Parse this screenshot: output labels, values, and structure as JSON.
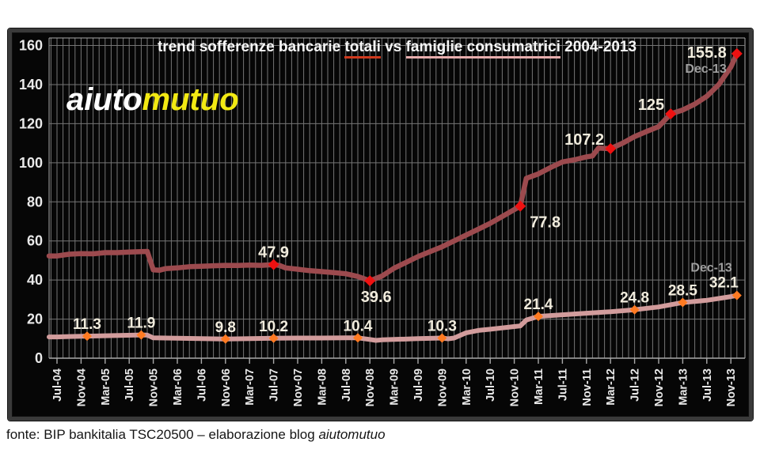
{
  "logo": {
    "part1": "aiuto",
    "part2": "mutuo",
    "color1": "#ffffff",
    "color2": "#f2e913"
  },
  "title": {
    "prefix": "trend sofferenze bancarie ",
    "totali": "totali",
    "mid": " vs ",
    "famiglie": "famiglie consumatrici",
    "suffix": " 2004-2013",
    "underline_totali": "#cf3a1e",
    "underline_famiglie": "#e8aeae"
  },
  "footer": {
    "prefix": "fonte: BIP bankitalia TSC20500 – elaborazione blog ",
    "italic": "aiutomutuo"
  },
  "chart_data": {
    "type": "line",
    "title": "trend sofferenze bancarie totali vs famiglie consumatrici 2004-2013",
    "xlabel": "",
    "ylabel": "",
    "ylim": [
      0,
      160
    ],
    "y_ticks": [
      0,
      20,
      40,
      60,
      80,
      100,
      120,
      140,
      160
    ],
    "grid": "monthly vertical gridlines + horizontal every 20",
    "legend": "no legend box; title words underlined in series colors",
    "x_unit": "months, index 0 = Jul-04, index 113 = Dec-13",
    "x_tick_every_months": 4,
    "x_tick_labels": [
      "Jul-04",
      "Nov-04",
      "Mar-05",
      "Jul-05",
      "Nov-05",
      "Mar-06",
      "Jul-06",
      "Nov-06",
      "Mar-07",
      "Jul-07",
      "Nov-07",
      "Mar-08",
      "Jul-08",
      "Nov-08",
      "Mar-09",
      "Jul-09",
      "Nov-09",
      "Mar-10",
      "Jul-10",
      "Nov-10",
      "Mar-11",
      "Jul-11",
      "Nov-11",
      "Mar-12",
      "Jul-12",
      "Nov-12",
      "Mar-13",
      "Jul-13",
      "Nov-13"
    ],
    "colors": {
      "plot_bg": "#060606",
      "grid": "#757575",
      "axis": "#a8a8a8",
      "tick_text": "#e9e9e9",
      "label_text": "#f1ecdd",
      "note_text": "#a0a0a0"
    },
    "series": [
      {
        "name": "sofferenze bancarie totali",
        "color": "#9c4a4e",
        "marker_color": "#ee1111",
        "line_width": 6.5,
        "points": [
          [
            0,
            52.3
          ],
          [
            2,
            53.2
          ],
          [
            4,
            53.5
          ],
          [
            6,
            53.4
          ],
          [
            8,
            54
          ],
          [
            10,
            54
          ],
          [
            12,
            54.3
          ],
          [
            15,
            54.6
          ],
          [
            16,
            45.2
          ],
          [
            17,
            45
          ],
          [
            18,
            45.8
          ],
          [
            20,
            46.2
          ],
          [
            22,
            46.8
          ],
          [
            24,
            47
          ],
          [
            26,
            47.3
          ],
          [
            28,
            47.5
          ],
          [
            30,
            47.4
          ],
          [
            32,
            47.6
          ],
          [
            34,
            47.5
          ],
          [
            36,
            47.9
          ],
          [
            37,
            47.4
          ],
          [
            38,
            46.2
          ],
          [
            40,
            45.5
          ],
          [
            42,
            44.8
          ],
          [
            44,
            44.3
          ],
          [
            46,
            43.8
          ],
          [
            48,
            43.2
          ],
          [
            50,
            41.8
          ],
          [
            52,
            39.6
          ],
          [
            54,
            42
          ],
          [
            56,
            46
          ],
          [
            58,
            49
          ],
          [
            60,
            52
          ],
          [
            62,
            54.5
          ],
          [
            64,
            57
          ],
          [
            66,
            60
          ],
          [
            68,
            63
          ],
          [
            70,
            66
          ],
          [
            72,
            69
          ],
          [
            74,
            72.5
          ],
          [
            76,
            76
          ],
          [
            77,
            77.8
          ],
          [
            78,
            92
          ],
          [
            80,
            94.3
          ],
          [
            82,
            97.5
          ],
          [
            84,
            100.4
          ],
          [
            86,
            101.5
          ],
          [
            88,
            103
          ],
          [
            89,
            103.5
          ],
          [
            90,
            107.5
          ],
          [
            92,
            107.2
          ],
          [
            94,
            110
          ],
          [
            96,
            113.4
          ],
          [
            98,
            116
          ],
          [
            100,
            118.5
          ],
          [
            102,
            125
          ],
          [
            104,
            127
          ],
          [
            106,
            130
          ],
          [
            108,
            134
          ],
          [
            110,
            140
          ],
          [
            112,
            149
          ],
          [
            113,
            155.8
          ]
        ]
      },
      {
        "name": "sofferenze famiglie consumatrici",
        "color": "#d29c9c",
        "marker_color": "#ff7a22",
        "line_width": 6,
        "points": [
          [
            0,
            10.9
          ],
          [
            2,
            11.1
          ],
          [
            5,
            11.3
          ],
          [
            8,
            11.5
          ],
          [
            11,
            11.7
          ],
          [
            14,
            11.9
          ],
          [
            15,
            11.8
          ],
          [
            16,
            10.4
          ],
          [
            18,
            10.3
          ],
          [
            20,
            10.2
          ],
          [
            24,
            10
          ],
          [
            28,
            9.8
          ],
          [
            30,
            9.9
          ],
          [
            32,
            10
          ],
          [
            36,
            10.2
          ],
          [
            40,
            10.3
          ],
          [
            44,
            10.3
          ],
          [
            48,
            10.4
          ],
          [
            50,
            10.4
          ],
          [
            52,
            9.6
          ],
          [
            53,
            9.1
          ],
          [
            54,
            9.4
          ],
          [
            56,
            9.6
          ],
          [
            60,
            10
          ],
          [
            64,
            10.3
          ],
          [
            65,
            9.9
          ],
          [
            66,
            10.3
          ],
          [
            68,
            13
          ],
          [
            70,
            14.2
          ],
          [
            72,
            14.8
          ],
          [
            74,
            15.5
          ],
          [
            76,
            16.2
          ],
          [
            77,
            16.5
          ],
          [
            78,
            19.5
          ],
          [
            80,
            21.4
          ],
          [
            84,
            22.2
          ],
          [
            88,
            23
          ],
          [
            92,
            23.8
          ],
          [
            96,
            24.8
          ],
          [
            100,
            26.2
          ],
          [
            104,
            28.5
          ],
          [
            108,
            29.6
          ],
          [
            112,
            31.5
          ],
          [
            113,
            32.1
          ]
        ]
      }
    ],
    "annotations": [
      {
        "series": 0,
        "text": "47.9",
        "m": 36,
        "v": 47.9,
        "pos": "above"
      },
      {
        "series": 0,
        "text": "39.6",
        "m": 52,
        "v": 39.6,
        "pos": "below"
      },
      {
        "series": 0,
        "text": "77.8",
        "m": 77,
        "v": 77.8,
        "pos": "below-right"
      },
      {
        "series": 0,
        "text": "107.2",
        "m": 92,
        "v": 107.2,
        "pos": "left-above"
      },
      {
        "series": 0,
        "text": "125",
        "m": 102,
        "v": 125,
        "pos": "left-above"
      },
      {
        "series": 0,
        "text": "155.8",
        "m": 113,
        "v": 155.8,
        "pos": "left",
        "note": "Dec-13",
        "note_pos": "below"
      },
      {
        "series": 1,
        "text": "11.3",
        "m": 5,
        "v": 11.3,
        "pos": "above"
      },
      {
        "series": 1,
        "text": "11.9",
        "m": 14,
        "v": 11.9,
        "pos": "above"
      },
      {
        "series": 1,
        "text": "9.8",
        "m": 28,
        "v": 9.8,
        "pos": "above"
      },
      {
        "series": 1,
        "text": "10.2",
        "m": 36,
        "v": 10.2,
        "pos": "above"
      },
      {
        "series": 1,
        "text": "10.4",
        "m": 50,
        "v": 10.4,
        "pos": "above"
      },
      {
        "series": 1,
        "text": "10.3",
        "m": 64,
        "v": 10.3,
        "pos": "above"
      },
      {
        "series": 1,
        "text": "21.4",
        "m": 80,
        "v": 21.4,
        "pos": "above"
      },
      {
        "series": 1,
        "text": "24.8",
        "m": 96,
        "v": 24.8,
        "pos": "above"
      },
      {
        "series": 1,
        "text": "28.5",
        "m": 104,
        "v": 28.5,
        "pos": "above"
      },
      {
        "series": 1,
        "text": "32.1",
        "m": 113,
        "v": 32.1,
        "pos": "above-left",
        "note": "Dec-13",
        "note_pos": "above"
      }
    ]
  }
}
